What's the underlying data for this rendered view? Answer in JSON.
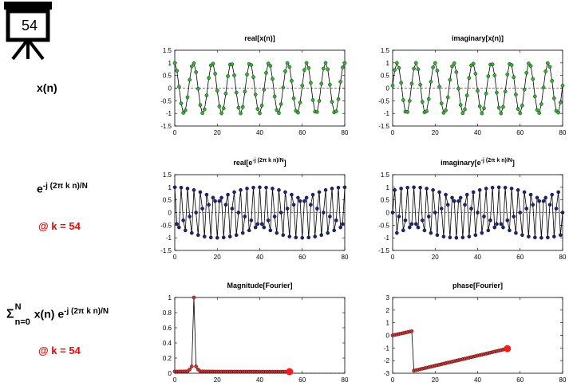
{
  "board": {
    "number": "54"
  },
  "labels": {
    "row1": "x(n)",
    "row2_base": "e",
    "row2_exp": "-j (2π k n)/N",
    "row2_k": "@ k = 54",
    "row3_sigma": "Σ",
    "row3_sup": "N",
    "row3_sub": "n=0",
    "row3_mid": " x(n) e",
    "row3_exp": "-j (2π k n)/N",
    "row3_k": "@ k = 54"
  },
  "colors": {
    "green": "#2db82d",
    "navy": "#1a237e",
    "red": "#d32f2f",
    "accent_text": "#ff0000"
  },
  "chart_data": [
    {
      "id": "real_x",
      "type": "line",
      "title": "real[x(n)]",
      "title_base": "",
      "title_sup": "",
      "title_end": "",
      "xlim": [
        0,
        80
      ],
      "ylim": [
        -1.5,
        1.5
      ],
      "xticks": [
        0,
        20,
        40,
        60,
        80
      ],
      "yticks": [
        1.5,
        1,
        0.5,
        0,
        -0.5,
        -1,
        -1.5
      ],
      "marker_color": "#2db82d",
      "zero_line": true,
      "series": [
        {
          "x_range": [
            0,
            80
          ],
          "formula": "cos(2*pi*9*n/80)"
        }
      ]
    },
    {
      "id": "imag_x",
      "type": "line",
      "title": "imaginary[x(n)]",
      "title_base": "",
      "title_sup": "",
      "title_end": "",
      "xlim": [
        0,
        80
      ],
      "ylim": [
        -1.5,
        1.5
      ],
      "xticks": [
        0,
        20,
        40,
        60,
        80
      ],
      "yticks": [
        1.5,
        1,
        0.5,
        0,
        -0.5,
        -1,
        -1.5
      ],
      "marker_color": "#2db82d",
      "zero_line": true,
      "series": [
        {
          "x_range": [
            0,
            80
          ],
          "formula": "sin(2*pi*9*n/80)"
        }
      ]
    },
    {
      "id": "real_e",
      "type": "line",
      "title": "",
      "title_base": "real[e",
      "title_sup": "-j (2π k n)/N",
      "title_end": "]",
      "xlim": [
        0,
        80
      ],
      "ylim": [
        -1.5,
        1.5
      ],
      "xticks": [
        0,
        20,
        40,
        60,
        80
      ],
      "yticks": [
        1.5,
        1,
        0.5,
        0,
        -0.5,
        -1,
        -1.5
      ],
      "marker_color": "#1a237e",
      "zero_line": true,
      "series": [
        {
          "x_range": [
            0,
            80
          ],
          "formula": "cos(2*pi*54*n/80)"
        }
      ]
    },
    {
      "id": "imag_e",
      "type": "line",
      "title": "",
      "title_base": "imaginary[e",
      "title_sup": "-j (2π k n)/N",
      "title_end": "]",
      "xlim": [
        0,
        80
      ],
      "ylim": [
        -1.5,
        1.5
      ],
      "xticks": [
        0,
        20,
        40,
        60,
        80
      ],
      "yticks": [
        1.5,
        1,
        0.5,
        0,
        -0.5,
        -1,
        -1.5
      ],
      "marker_color": "#1a237e",
      "zero_line": true,
      "series": [
        {
          "x_range": [
            0,
            80
          ],
          "formula": "-sin(2*pi*54*n/80)"
        }
      ]
    },
    {
      "id": "magnitude",
      "type": "line",
      "title": "Magnitude[Fourier]",
      "title_base": "",
      "title_sup": "",
      "title_end": "",
      "xlim": [
        0,
        80
      ],
      "ylim": [
        0,
        1
      ],
      "xticks": [
        0,
        20,
        40,
        60,
        80
      ],
      "yticks": [
        1,
        0.8,
        0.6,
        0.4,
        0.2,
        0
      ],
      "marker_color": "#d32f2f",
      "zero_line": false,
      "dashed_after": 54,
      "current_k": 54,
      "series": [
        {
          "x_range": [
            0,
            54
          ],
          "formula": "dft magnitude of exp(j*2*pi*9*n/80), N=80"
        }
      ]
    },
    {
      "id": "phase",
      "type": "line",
      "title": "phase[Fourier]",
      "title_base": "",
      "title_sup": "",
      "title_end": "",
      "xlim": [
        0,
        80
      ],
      "ylim": [
        -3,
        3
      ],
      "xticks": [
        0,
        20,
        40,
        60,
        80
      ],
      "yticks": [
        3,
        2,
        1,
        0,
        -1,
        -2,
        -3
      ],
      "marker_color": "#d32f2f",
      "zero_line": false,
      "current_k": 54,
      "series": [
        {
          "x": [
            0,
            9,
            10,
            54
          ],
          "y": [
            0.0,
            0.33,
            -2.8,
            -1.05
          ],
          "note_piecewise_linear": true
        }
      ]
    }
  ]
}
